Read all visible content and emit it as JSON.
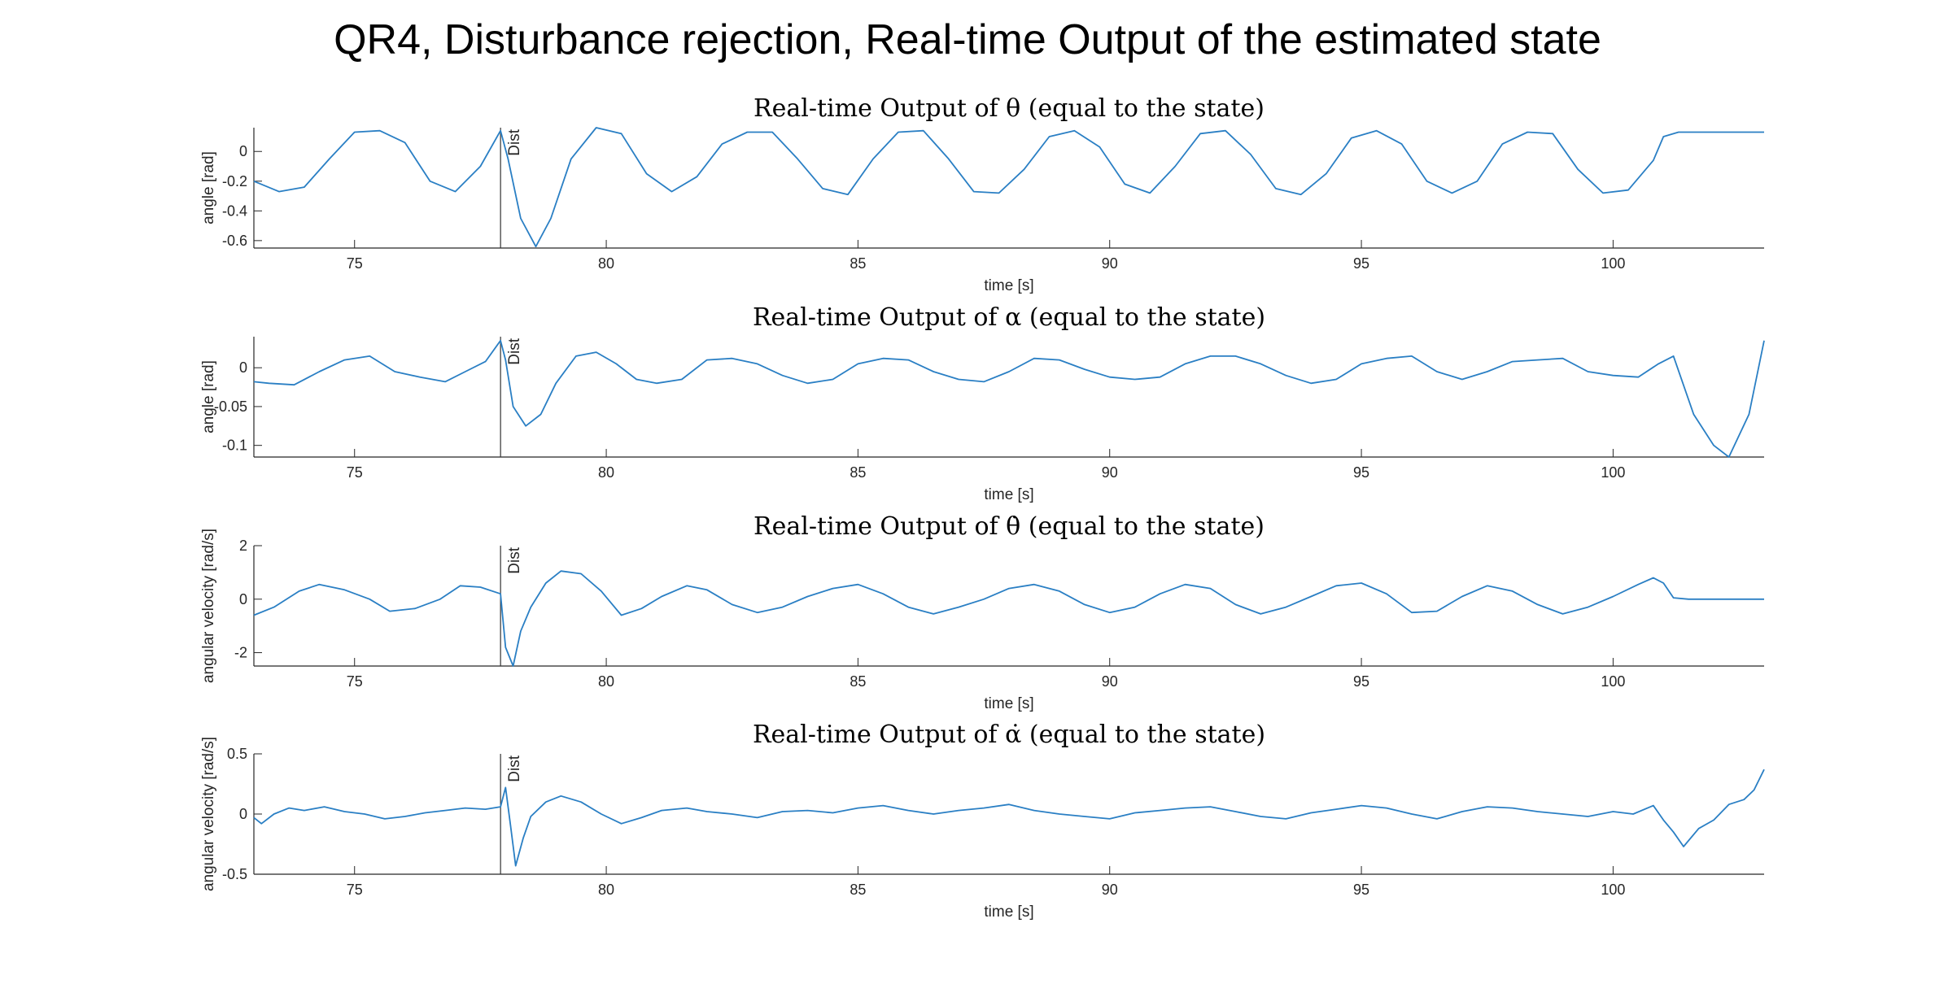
{
  "figure": {
    "suptitle": "QR4, Disturbance rejection, Real-time Output of the estimated state",
    "line_color": "#2A7FC4",
    "axis_color": "#262626"
  },
  "chart_data": [
    {
      "type": "line",
      "title": "Real-time Output of θ (equal to the state)",
      "xlabel": "time [s]",
      "ylabel": "angle [rad]",
      "xlim": [
        73,
        103
      ],
      "ylim": [
        -0.65,
        0.16
      ],
      "xticks": [
        75,
        80,
        85,
        90,
        95,
        100
      ],
      "yticks": [
        -0.6,
        -0.4,
        -0.2,
        0
      ],
      "yticklabels": [
        "-0.6",
        "-0.4",
        "-0.2",
        "0"
      ],
      "annotation": {
        "label": "Dist",
        "x": 77.9
      },
      "series": [
        {
          "x": [
            73.0,
            73.5,
            74.0,
            74.5,
            75.0,
            75.5,
            76.0,
            76.5,
            77.0,
            77.5,
            77.9,
            78.05,
            78.3,
            78.6,
            78.9,
            79.3,
            79.8,
            80.3,
            80.8,
            81.3,
            81.8,
            82.3,
            82.8,
            83.3,
            83.8,
            84.3,
            84.8,
            85.3,
            85.8,
            86.3,
            86.8,
            87.3,
            87.8,
            88.3,
            88.8,
            89.3,
            89.8,
            90.3,
            90.8,
            91.3,
            91.8,
            92.3,
            92.8,
            93.3,
            93.8,
            94.3,
            94.8,
            95.3,
            95.8,
            96.3,
            96.8,
            97.3,
            97.8,
            98.3,
            98.8,
            99.3,
            99.8,
            100.3,
            100.8,
            101.0,
            101.3,
            101.8,
            102.5,
            103.0
          ],
          "y": [
            -0.2,
            -0.27,
            -0.24,
            -0.05,
            0.13,
            0.14,
            0.06,
            -0.2,
            -0.27,
            -0.1,
            0.14,
            -0.05,
            -0.45,
            -0.64,
            -0.45,
            -0.05,
            0.17,
            0.12,
            -0.15,
            -0.27,
            -0.17,
            0.05,
            0.13,
            0.13,
            -0.05,
            -0.25,
            -0.29,
            -0.05,
            0.13,
            0.14,
            -0.05,
            -0.27,
            -0.28,
            -0.12,
            0.1,
            0.14,
            0.03,
            -0.22,
            -0.28,
            -0.1,
            0.12,
            0.14,
            -0.02,
            -0.25,
            -0.29,
            -0.15,
            0.09,
            0.14,
            0.05,
            -0.2,
            -0.28,
            -0.2,
            0.05,
            0.13,
            0.12,
            -0.12,
            -0.28,
            -0.26,
            -0.06,
            0.1,
            0.13,
            0.13,
            0.13,
            0.13
          ]
        }
      ]
    },
    {
      "type": "line",
      "title": "Real-time Output of α (equal to the state)",
      "xlabel": "time [s]",
      "ylabel": "angle [rad]",
      "xlim": [
        73,
        103
      ],
      "ylim": [
        -0.115,
        0.04
      ],
      "xticks": [
        75,
        80,
        85,
        90,
        95,
        100
      ],
      "yticks": [
        -0.1,
        -0.05,
        0
      ],
      "yticklabels": [
        "-0.1",
        "-0.05",
        "0"
      ],
      "annotation": {
        "label": "Dist",
        "x": 77.9
      },
      "series": [
        {
          "x": [
            73.0,
            73.3,
            73.8,
            74.3,
            74.8,
            75.3,
            75.8,
            76.3,
            76.8,
            77.2,
            77.6,
            77.9,
            78.0,
            78.15,
            78.4,
            78.7,
            79.0,
            79.4,
            79.8,
            80.2,
            80.6,
            81.0,
            81.5,
            82.0,
            82.5,
            83.0,
            83.5,
            84.0,
            84.5,
            85.0,
            85.5,
            86.0,
            86.5,
            87.0,
            87.5,
            88.0,
            88.5,
            89.0,
            89.5,
            90.0,
            90.5,
            91.0,
            91.5,
            92.0,
            92.5,
            93.0,
            93.5,
            94.0,
            94.5,
            95.0,
            95.5,
            96.0,
            96.5,
            97.0,
            97.5,
            98.0,
            98.5,
            99.0,
            99.5,
            100.0,
            100.5,
            100.9,
            101.2,
            101.6,
            102.0,
            102.3,
            102.7,
            103.0
          ],
          "y": [
            -0.018,
            -0.02,
            -0.022,
            -0.005,
            0.01,
            0.015,
            -0.005,
            -0.012,
            -0.018,
            -0.005,
            0.008,
            0.035,
            0.01,
            -0.05,
            -0.075,
            -0.06,
            -0.02,
            0.015,
            0.02,
            0.005,
            -0.015,
            -0.02,
            -0.015,
            0.01,
            0.012,
            0.005,
            -0.01,
            -0.02,
            -0.015,
            0.005,
            0.012,
            0.01,
            -0.005,
            -0.015,
            -0.018,
            -0.005,
            0.012,
            0.01,
            -0.002,
            -0.012,
            -0.015,
            -0.012,
            0.005,
            0.015,
            0.015,
            0.005,
            -0.01,
            -0.02,
            -0.015,
            0.005,
            0.012,
            0.015,
            -0.005,
            -0.015,
            -0.005,
            0.008,
            0.01,
            0.012,
            -0.005,
            -0.01,
            -0.012,
            0.005,
            0.015,
            -0.06,
            -0.1,
            -0.115,
            -0.06,
            0.035
          ]
        }
      ]
    },
    {
      "type": "line",
      "title": "Real-time Output of θ̇ (equal to the state)",
      "xlabel": "time [s]",
      "ylabel": "angular velocity [rad/s]",
      "xlim": [
        73,
        103
      ],
      "ylim": [
        -2.5,
        2.0
      ],
      "xticks": [
        75,
        80,
        85,
        90,
        95,
        100
      ],
      "yticks": [
        -2,
        0,
        2
      ],
      "yticklabels": [
        "-2",
        "0",
        "2"
      ],
      "annotation": {
        "label": "Dist",
        "x": 77.9
      },
      "series": [
        {
          "x": [
            73.0,
            73.4,
            73.9,
            74.3,
            74.8,
            75.3,
            75.7,
            76.2,
            76.7,
            77.1,
            77.5,
            77.9,
            78.0,
            78.15,
            78.3,
            78.5,
            78.8,
            79.1,
            79.5,
            79.9,
            80.3,
            80.7,
            81.1,
            81.6,
            82.0,
            82.5,
            83.0,
            83.5,
            84.0,
            84.5,
            85.0,
            85.5,
            86.0,
            86.5,
            87.0,
            87.5,
            88.0,
            88.5,
            89.0,
            89.5,
            90.0,
            90.5,
            91.0,
            91.5,
            92.0,
            92.5,
            93.0,
            93.5,
            94.0,
            94.5,
            95.0,
            95.5,
            96.0,
            96.5,
            97.0,
            97.5,
            98.0,
            98.5,
            99.0,
            99.5,
            100.0,
            100.5,
            100.8,
            101.0,
            101.2,
            101.5,
            102.0,
            102.5,
            103.0
          ],
          "y": [
            -0.6,
            -0.3,
            0.3,
            0.55,
            0.35,
            0.0,
            -0.45,
            -0.35,
            0.0,
            0.5,
            0.45,
            0.2,
            -1.8,
            -2.6,
            -1.2,
            -0.3,
            0.6,
            1.05,
            0.95,
            0.3,
            -0.6,
            -0.35,
            0.1,
            0.5,
            0.35,
            -0.2,
            -0.5,
            -0.3,
            0.1,
            0.4,
            0.55,
            0.2,
            -0.3,
            -0.55,
            -0.3,
            0.0,
            0.4,
            0.55,
            0.3,
            -0.2,
            -0.5,
            -0.3,
            0.2,
            0.55,
            0.4,
            -0.2,
            -0.55,
            -0.3,
            0.1,
            0.5,
            0.6,
            0.2,
            -0.5,
            -0.45,
            0.1,
            0.5,
            0.3,
            -0.2,
            -0.55,
            -0.3,
            0.1,
            0.55,
            0.8,
            0.6,
            0.05,
            0.0,
            0.0,
            0.0,
            0.0
          ]
        }
      ]
    },
    {
      "type": "line",
      "title": "Real-time Output of α̇ (equal to the state)",
      "xlabel": "time [s]",
      "ylabel": "angular velocity [rad/s]",
      "xlim": [
        73,
        103
      ],
      "ylim": [
        -0.5,
        0.5
      ],
      "xticks": [
        75,
        80,
        85,
        90,
        95,
        100
      ],
      "yticks": [
        -0.5,
        0,
        0.5
      ],
      "yticklabels": [
        "-0.5",
        "0",
        "0.5"
      ],
      "annotation": {
        "label": "Dist",
        "x": 77.9
      },
      "series": [
        {
          "x": [
            73.0,
            73.15,
            73.4,
            73.7,
            74.0,
            74.4,
            74.8,
            75.2,
            75.6,
            76.0,
            76.4,
            76.8,
            77.2,
            77.6,
            77.9,
            78.0,
            78.1,
            78.2,
            78.35,
            78.5,
            78.8,
            79.1,
            79.5,
            79.9,
            80.3,
            80.7,
            81.1,
            81.6,
            82.0,
            82.5,
            83.0,
            83.5,
            84.0,
            84.5,
            85.0,
            85.5,
            86.0,
            86.5,
            87.0,
            87.5,
            88.0,
            88.5,
            89.0,
            89.5,
            90.0,
            90.5,
            91.0,
            91.5,
            92.0,
            92.5,
            93.0,
            93.5,
            94.0,
            94.5,
            95.0,
            95.5,
            96.0,
            96.5,
            97.0,
            97.5,
            98.0,
            98.5,
            99.0,
            99.5,
            100.0,
            100.4,
            100.8,
            101.0,
            101.2,
            101.4,
            101.7,
            102.0,
            102.3,
            102.6,
            102.8,
            103.0
          ],
          "y": [
            -0.03,
            -0.08,
            0.0,
            0.05,
            0.03,
            0.06,
            0.02,
            0.0,
            -0.04,
            -0.02,
            0.01,
            0.03,
            0.05,
            0.04,
            0.06,
            0.22,
            -0.1,
            -0.43,
            -0.2,
            -0.02,
            0.1,
            0.15,
            0.1,
            0.0,
            -0.08,
            -0.03,
            0.03,
            0.05,
            0.02,
            0.0,
            -0.03,
            0.02,
            0.03,
            0.01,
            0.05,
            0.07,
            0.03,
            0.0,
            0.03,
            0.05,
            0.08,
            0.03,
            0.0,
            -0.02,
            -0.04,
            0.01,
            0.03,
            0.05,
            0.06,
            0.02,
            -0.02,
            -0.04,
            0.01,
            0.04,
            0.07,
            0.05,
            0.0,
            -0.04,
            0.02,
            0.06,
            0.05,
            0.02,
            0.0,
            -0.02,
            0.02,
            0.0,
            0.07,
            -0.05,
            -0.15,
            -0.27,
            -0.12,
            -0.05,
            0.08,
            0.12,
            0.2,
            0.37
          ]
        }
      ]
    }
  ]
}
